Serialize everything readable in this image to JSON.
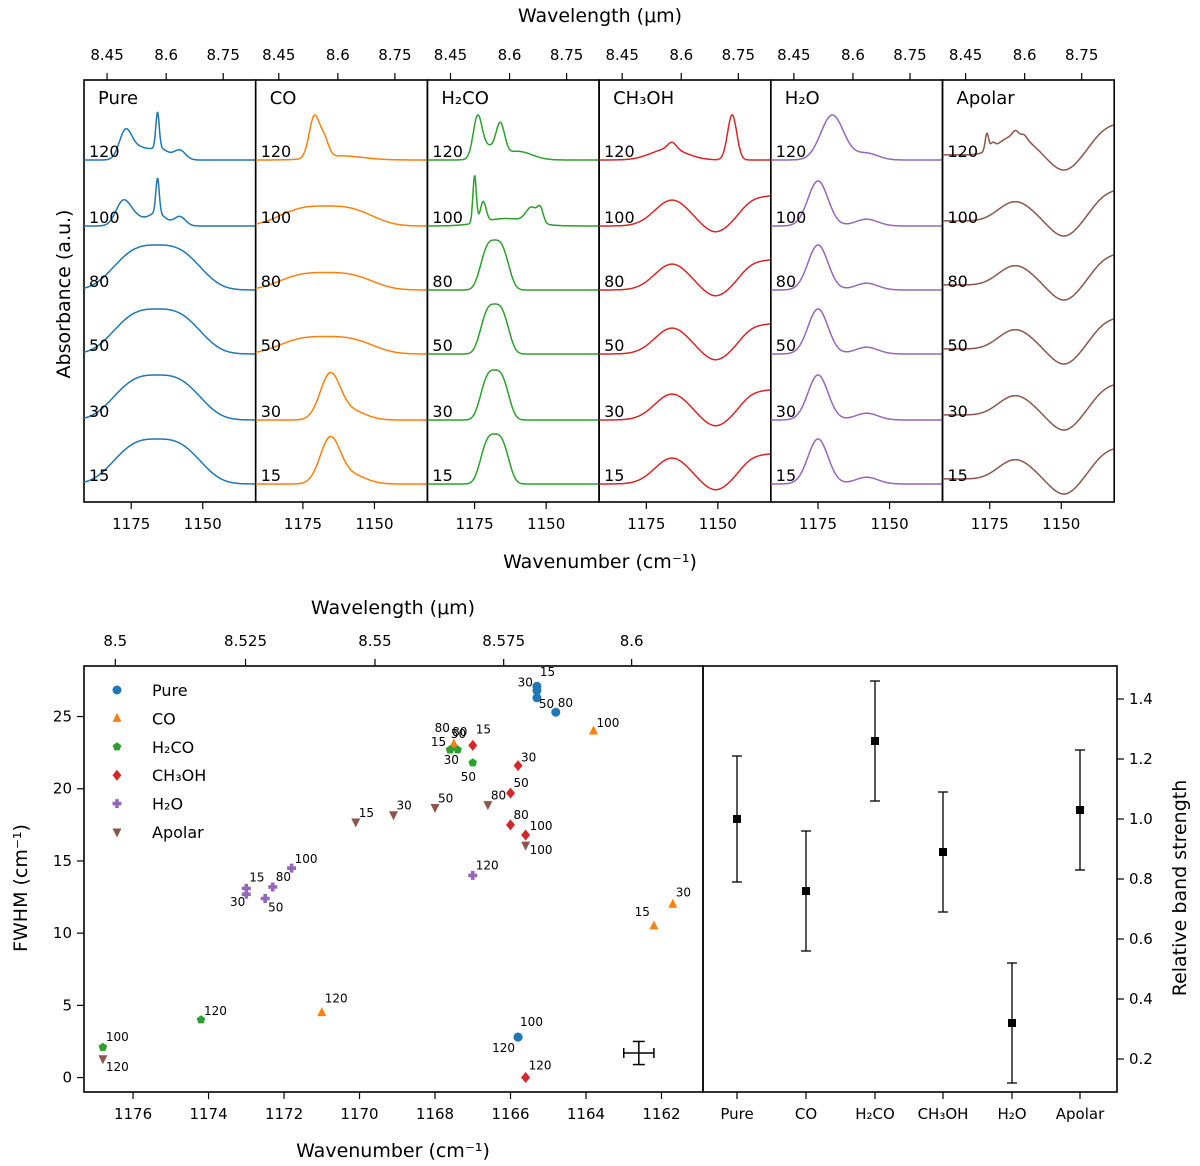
{
  "chart_data": [
    {
      "type": "line",
      "title": "",
      "xlabel": "Wavenumber (cm⁻¹)",
      "top_xlabel": "Wavelength (μm)",
      "ylabel": "Absorbance (a.u.)",
      "xlim": [
        1191.5,
        1131.5
      ],
      "x_ticks": [
        "1175",
        "1150"
      ],
      "top_ticks": [
        "8.45",
        "8.6",
        "8.75"
      ],
      "temperatures": [
        "120",
        "100",
        "80",
        "50",
        "30",
        "15"
      ],
      "panels": [
        {
          "name": "Pure",
          "color": "#1f77b4",
          "spectra": {
            "15": {
              "peaks": [
                [
                  1166,
                  12,
                  9
                ]
              ],
              "height": 0.9
            },
            "30": {
              "peaks": [
                [
                  1166,
                  12,
                  9
                ]
              ],
              "height": 0.9
            },
            "50": {
              "peaks": [
                [
                  1166,
                  12,
                  9
                ]
              ],
              "height": 0.9
            },
            "80": {
              "peaks": [
                [
                  1166,
                  12,
                  9
                ]
              ],
              "height": 0.9
            },
            "100": {
              "peaks": [
                [
                  1166,
                  3,
                  0.35
                ],
                [
                  1178,
                  2.5,
                  0.6
                ],
                [
                  1174,
                  3,
                  0.25
                ],
                [
                  1158,
                  2,
                  0.25
                ],
                [
                  1165.8,
                  0.6,
                  0.95
                ]
              ],
              "height": 0.95
            },
            "120": {
              "peaks": [
                [
                  1165,
                  3,
                  0.3
                ],
                [
                  1177,
                  2.2,
                  0.75
                ],
                [
                  1172,
                  3,
                  0.3
                ],
                [
                  1158,
                  2,
                  0.25
                ],
                [
                  1165.8,
                  0.6,
                  0.95
                ]
              ],
              "height": 0.95
            }
          }
        },
        {
          "name": "CO",
          "color": "#ff7f0e",
          "spectra": {
            "15": {
              "peaks": [
                [
                  1165.5,
                  3.5,
                  1.0
                ],
                [
                  1158,
                  5,
                  0.2
                ]
              ],
              "height": 0.95
            },
            "30": {
              "peaks": [
                [
                  1165.5,
                  3.5,
                  1.0
                ],
                [
                  1158,
                  5,
                  0.2
                ]
              ],
              "height": 0.95
            },
            "50": {
              "peaks": [
                [
                  1167,
                  12,
                  11
                ]
              ],
              "height": 0.35
            },
            "80": {
              "peaks": [
                [
                  1167,
                  12,
                  11
                ]
              ],
              "height": 0.35
            },
            "100": {
              "peaks": [
                [
                  1167,
                  12,
                  11
                ]
              ],
              "height": 0.4
            },
            "120": {
              "peaks": [
                [
                  1171,
                  1.8,
                  1.0
                ],
                [
                  1167.5,
                  1.5,
                  0.4
                ],
                [
                  1162,
                  8,
                  0.1
                ]
              ],
              "height": 0.9
            }
          }
        },
        {
          "name": "H₂CO",
          "color": "#2ca02c",
          "spectra": {
            "15": {
              "peaks": [
                [
                  1168,
                  4,
                  8
                ]
              ],
              "height": 1.0
            },
            "30": {
              "peaks": [
                [
                  1168,
                  4,
                  8
                ]
              ],
              "height": 1.0
            },
            "50": {
              "peaks": [
                [
                  1168,
                  4,
                  8
                ]
              ],
              "height": 1.0
            },
            "80": {
              "peaks": [
                [
                  1168,
                  4,
                  8
                ]
              ],
              "height": 1.0
            },
            "100": {
              "peaks": [
                [
                  1175,
                  0.6,
                  0.95
                ],
                [
                  1164,
                  8,
                  0.15
                ],
                [
                  1155,
                  2,
                  0.3
                ],
                [
                  1152,
                  1,
                  0.25
                ],
                [
                  1172,
                  1,
                  0.4
                ]
              ],
              "height": 1.0
            },
            "120": {
              "peaks": [
                [
                  1174,
                  1.5,
                  0.85
                ],
                [
                  1166,
                  1.5,
                  0.7
                ],
                [
                  1160,
                  5,
                  0.2
                ],
                [
                  1171,
                  3,
                  0.3
                ]
              ],
              "height": 0.9
            }
          }
        },
        {
          "name": "CH₃OH",
          "color": "#d62728",
          "spectra": {
            "15": {
              "peaks": [
                [
                  1166,
                  10,
                  0
                ]
              ],
              "height": 0.6
            },
            "30": {
              "peaks": [
                [
                  1166,
                  10,
                  0
                ]
              ],
              "height": 0.6
            },
            "50": {
              "peaks": [
                [
                  1166,
                  10,
                  0
                ]
              ],
              "height": 0.6
            },
            "80": {
              "peaks": [
                [
                  1166,
                  10,
                  0
                ]
              ],
              "height": 0.6
            },
            "100": {
              "peaks": [
                [
                  1166,
                  10,
                  0
                ]
              ],
              "height": 0.6
            },
            "120": {
              "peaks": [
                [
                  1145,
                  1.6,
                  1.0
                ],
                [
                  1166,
                  1.5,
                  0.15
                ],
                [
                  1166,
                  6,
                  0.1
                ]
              ],
              "height": 0.9
            }
          }
        },
        {
          "name": "H₂O",
          "color": "#9467bd",
          "spectra": {
            "15": {
              "peaks": [
                [
                  1175,
                  3.5,
                  1.0
                ],
                [
                  1158,
                  4,
                  0.15
                ]
              ],
              "height": 0.9
            },
            "30": {
              "peaks": [
                [
                  1175,
                  3.5,
                  1.0
                ],
                [
                  1158,
                  4,
                  0.15
                ]
              ],
              "height": 0.9
            },
            "50": {
              "peaks": [
                [
                  1175,
                  3.5,
                  1.0
                ],
                [
                  1158,
                  4,
                  0.15
                ]
              ],
              "height": 0.9
            },
            "80": {
              "peaks": [
                [
                  1175,
                  3.5,
                  1.0
                ],
                [
                  1158,
                  4,
                  0.15
                ]
              ],
              "height": 0.9
            },
            "100": {
              "peaks": [
                [
                  1175,
                  3.5,
                  1.0
                ],
                [
                  1158,
                  4,
                  0.15
                ]
              ],
              "height": 0.9
            },
            "120": {
              "peaks": [
                [
                  1170,
                  4,
                  1.0
                ],
                [
                  1158,
                  4,
                  0.15
                ]
              ],
              "height": 0.9
            }
          }
        },
        {
          "name": "Apolar",
          "color": "#8c564b",
          "spectra": {
            "15": {
              "peaks": [
                [
                  1166,
                  10,
                  0
                ]
              ],
              "height": 0.7
            },
            "30": {
              "peaks": [
                [
                  1166,
                  10,
                  0
                ]
              ],
              "height": 0.7
            },
            "50": {
              "peaks": [
                [
                  1166,
                  10,
                  0
                ]
              ],
              "height": 0.7
            },
            "80": {
              "peaks": [
                [
                  1166,
                  10,
                  0
                ]
              ],
              "height": 0.7
            },
            "100": {
              "peaks": [
                [
                  1166,
                  10,
                  0
                ]
              ],
              "height": 0.7
            },
            "120": {
              "peaks": [
                [
                  1176,
                  0.6,
                  0.5
                ],
                [
                  1174,
                  0.8,
                  0.15
                ],
                [
                  1166,
                  1,
                  0.15
                ],
                [
                  1163,
                  1,
                  0.1
                ]
              ],
              "height": 0.7
            }
          }
        }
      ]
    },
    {
      "type": "scatter",
      "title": "",
      "xlabel": "Wavenumber (cm⁻¹)",
      "top_xlabel": "Wavelength (μm)",
      "ylabel": "FWHM (cm⁻¹)",
      "xlim": [
        1177.3,
        1160.9
      ],
      "ylim": [
        -1,
        28.5
      ],
      "x_ticks": [
        "1176",
        "1174",
        "1172",
        "1170",
        "1168",
        "1166",
        "1164",
        "1162"
      ],
      "y_ticks": [
        "0",
        "5",
        "10",
        "15",
        "20",
        "25"
      ],
      "top_ticks": [
        "8.5",
        "8.525",
        "8.55",
        "8.575",
        "8.6"
      ],
      "error_bar": {
        "x": 1162.6,
        "y": 1.7,
        "xerr": 0.4,
        "yerr": 0.8
      },
      "series": [
        {
          "name": "Pure",
          "color": "#1f77b4",
          "marker": "circle",
          "points": [
            {
              "x": 1165.3,
              "y": 27.1,
              "label": "15"
            },
            {
              "x": 1165.3,
              "y": 26.8,
              "label": "30"
            },
            {
              "x": 1165.3,
              "y": 26.3,
              "label": "50"
            },
            {
              "x": 1164.8,
              "y": 25.3,
              "label": "80"
            },
            {
              "x": 1165.8,
              "y": 2.8,
              "label": "100"
            },
            {
              "x": 1165.8,
              "y": 2.8,
              "label": "120"
            }
          ]
        },
        {
          "name": "CO",
          "color": "#ff7f0e",
          "marker": "triangle",
          "points": [
            {
              "x": 1162.2,
              "y": 10.5,
              "label": "15"
            },
            {
              "x": 1161.7,
              "y": 12.0,
              "label": "30"
            },
            {
              "x": 1167.5,
              "y": 23.1,
              "label": "50"
            },
            {
              "x": 1167.5,
              "y": 23.1,
              "label": "80"
            },
            {
              "x": 1163.8,
              "y": 24.0,
              "label": "100"
            },
            {
              "x": 1171.0,
              "y": 4.5,
              "label": "120"
            }
          ]
        },
        {
          "name": "H₂CO",
          "color": "#2ca02c",
          "marker": "pentagon",
          "points": [
            {
              "x": 1167.6,
              "y": 22.7,
              "label": "15"
            },
            {
              "x": 1167.4,
              "y": 22.7,
              "label": "30"
            },
            {
              "x": 1167.0,
              "y": 21.8,
              "label": "50"
            },
            {
              "x": 1167.6,
              "y": 22.7,
              "label": "80"
            },
            {
              "x": 1176.8,
              "y": 2.1,
              "label": "100"
            },
            {
              "x": 1174.2,
              "y": 4.0,
              "label": "120"
            }
          ]
        },
        {
          "name": "CH₃OH",
          "color": "#d62728",
          "marker": "diamond",
          "points": [
            {
              "x": 1167.0,
              "y": 23.0,
              "label": "15"
            },
            {
              "x": 1165.8,
              "y": 21.6,
              "label": "30"
            },
            {
              "x": 1166.0,
              "y": 19.7,
              "label": "50"
            },
            {
              "x": 1166.0,
              "y": 17.5,
              "label": "80"
            },
            {
              "x": 1165.6,
              "y": 16.8,
              "label": "100"
            },
            {
              "x": 1165.6,
              "y": 0.0,
              "label": "120"
            }
          ]
        },
        {
          "name": "H₂O",
          "color": "#9467bd",
          "marker": "plus",
          "points": [
            {
              "x": 1173.0,
              "y": 13.1,
              "label": "15"
            },
            {
              "x": 1173.0,
              "y": 12.7,
              "label": "30"
            },
            {
              "x": 1172.5,
              "y": 12.4,
              "label": "50"
            },
            {
              "x": 1172.3,
              "y": 13.2,
              "label": "80"
            },
            {
              "x": 1171.8,
              "y": 14.5,
              "label": "100"
            },
            {
              "x": 1167.0,
              "y": 14.0,
              "label": "120"
            }
          ]
        },
        {
          "name": "Apolar",
          "color": "#8c564b",
          "marker": "triangle-down",
          "points": [
            {
              "x": 1170.1,
              "y": 17.7,
              "label": "15"
            },
            {
              "x": 1169.1,
              "y": 18.2,
              "label": "30"
            },
            {
              "x": 1168.0,
              "y": 18.7,
              "label": "50"
            },
            {
              "x": 1166.6,
              "y": 18.9,
              "label": "80"
            },
            {
              "x": 1165.6,
              "y": 16.1,
              "label": "100"
            },
            {
              "x": 1176.8,
              "y": 1.3,
              "label": "120"
            }
          ]
        }
      ]
    },
    {
      "type": "errorbar",
      "title": "",
      "ylabel": "Relative band strength",
      "ylim": [
        0.09,
        1.51
      ],
      "y_ticks": [
        "0.2",
        "0.4",
        "0.6",
        "0.8",
        "1.0",
        "1.2",
        "1.4"
      ],
      "categories": [
        "Pure",
        "CO",
        "H₂CO",
        "CH₃OH",
        "H₂O",
        "Apolar"
      ],
      "values": [
        1.0,
        0.76,
        1.26,
        0.89,
        0.32,
        1.03
      ],
      "errors": [
        0.21,
        0.2,
        0.2,
        0.2,
        0.2,
        0.2
      ]
    }
  ]
}
